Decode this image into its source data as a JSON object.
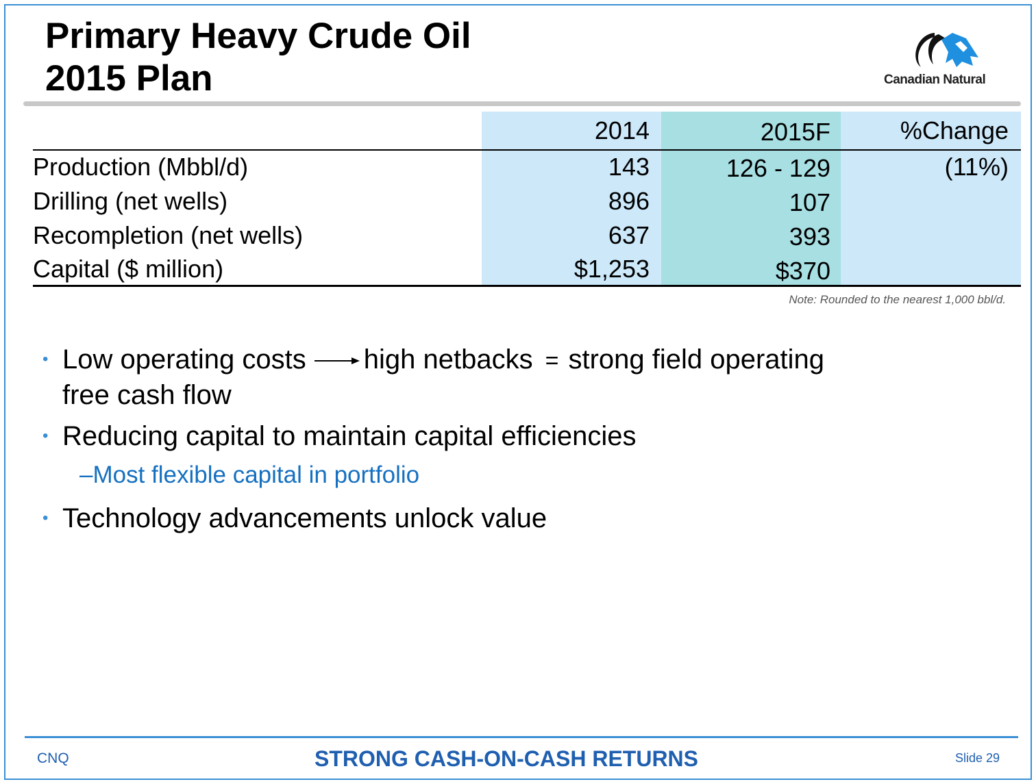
{
  "slide": {
    "title_line1": "Primary Heavy Crude Oil",
    "title_line2": "2015 Plan",
    "logo_text": "Canadian Natural",
    "colors": {
      "accent_blue": "#1570c0",
      "frame_blue": "#3a8fd4",
      "col_light": "#cce8f9",
      "col_teal": "#a7dfe3"
    }
  },
  "table": {
    "headers": [
      "",
      "2014",
      "2015F",
      "%Change"
    ],
    "rows": [
      {
        "label": "Production (Mbbl/d)",
        "y2014": "143",
        "y2015": "126 - 129",
        "change": "(11%)"
      },
      {
        "label": "Drilling (net wells)",
        "y2014": "896",
        "y2015": "107",
        "change": ""
      },
      {
        "label": "Recompletion (net wells)",
        "y2014": "637",
        "y2015": "393",
        "change": ""
      },
      {
        "label": "Capital ($ million)",
        "y2014": "$1,253",
        "y2015": "$370",
        "change": ""
      }
    ],
    "note": "Note: Rounded to the nearest 1,000 bbl/d."
  },
  "bullets": {
    "b1_part1": "Low operating costs",
    "b1_part2": "high netbacks",
    "b1_eq": "=",
    "b1_part3": "strong field operating",
    "b1_line2": "free cash flow",
    "b2": "Reducing capital to maintain capital efficiencies",
    "b2_sub": "Most flexible capital in portfolio",
    "b3": "Technology advancements unlock value"
  },
  "footer": {
    "left": "CNQ",
    "center": "STRONG CASH-ON-CASH RETURNS",
    "right": "Slide 29"
  }
}
